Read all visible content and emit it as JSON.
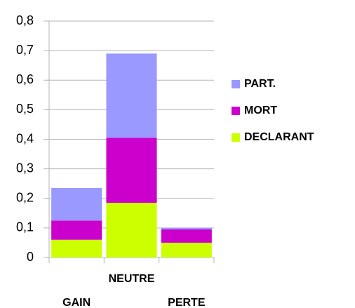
{
  "chart_data": {
    "type": "bar",
    "stacked": true,
    "categories": [
      "GAIN",
      "NEUTRE",
      "PERTE"
    ],
    "series": [
      {
        "name": "DECLARANT",
        "color": "#ccff00",
        "values": [
          0.06,
          0.185,
          0.05
        ]
      },
      {
        "name": "MORT",
        "color": "#cc00cc",
        "values": [
          0.065,
          0.22,
          0.045
        ]
      },
      {
        "name": "PART.",
        "color": "#9999ff",
        "values": [
          0.11,
          0.285,
          0.005
        ]
      }
    ],
    "ylim": [
      0,
      0.8
    ],
    "yticks": [
      0,
      {
        "value": 0.1,
        "label": "0,1"
      },
      {
        "value": 0.2,
        "label": "0,2"
      },
      {
        "value": 0.3,
        "label": "0,3"
      },
      {
        "value": 0.4,
        "label": "0,4"
      },
      {
        "value": 0.5,
        "label": "0,5"
      },
      {
        "value": 0.6,
        "label": "0,6"
      },
      {
        "value": 0.7,
        "label": "0,7"
      },
      {
        "value": 0.8,
        "label": "0,8"
      }
    ],
    "grid": true,
    "legend": "right"
  }
}
